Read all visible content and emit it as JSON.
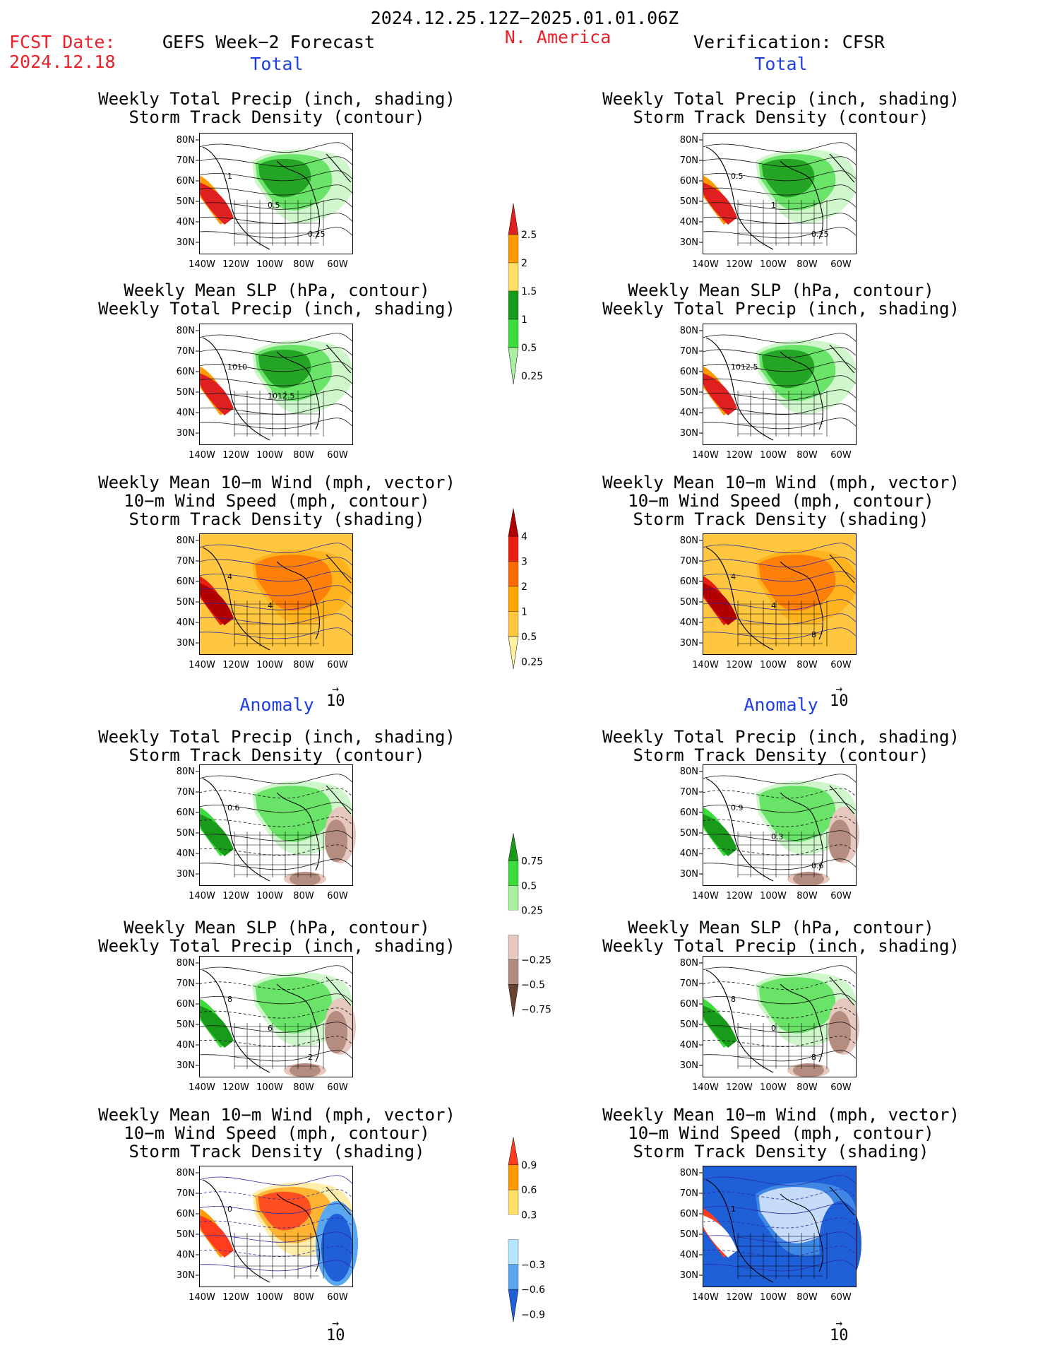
{
  "header": {
    "date_range": "2024.12.25.12Z−2025.01.01.06Z",
    "fcst_label": "FCST Date:",
    "fcst_date": "2024.12.18",
    "model": "GEFS Week−2 Forecast",
    "region": "N. America",
    "verification": "Verification: CFSR"
  },
  "sections": {
    "total": "Total",
    "anomaly": "Anomaly"
  },
  "panel_titles": {
    "precip_storm": [
      "Weekly Total Precip (inch, shading)",
      "Storm Track Density (contour)"
    ],
    "slp_precip": [
      "Weekly Mean SLP (hPa, contour)",
      "Weekly Total Precip (inch, shading)"
    ],
    "wind_storm": [
      "Weekly Mean 10−m Wind (mph, vector)",
      "10−m Wind Speed (mph, contour)",
      "Storm Track Density (shading)"
    ]
  },
  "axes": {
    "lat_labels": [
      "80N",
      "70N",
      "60N",
      "50N",
      "40N",
      "30N"
    ],
    "lon_labels": [
      "140W",
      "120W",
      "100W",
      "80W",
      "60W"
    ]
  },
  "vector_ref": "10",
  "colorbars": {
    "precip_total": {
      "labels": [
        "2.5",
        "2",
        "1.5",
        "1",
        "0.5",
        "0.25"
      ],
      "colors": [
        "#e02020",
        "#ff9a00",
        "#ffe066",
        "#1a9a1a",
        "#3ddc3d",
        "#a8f0a0"
      ]
    },
    "storm_total": {
      "labels": [
        "4",
        "3",
        "2",
        "1",
        "0.5",
        "0.25"
      ],
      "colors": [
        "#b00000",
        "#e82010",
        "#ff6a00",
        "#ffa500",
        "#ffc640",
        "#fff0a0"
      ]
    },
    "precip_anom": {
      "labels": [
        "0.75",
        "0.5",
        "0.25",
        "−0.25",
        "−0.5",
        "−0.75"
      ],
      "colors": [
        "#1a9a1a",
        "#3ddc3d",
        "#a8f0a0",
        "#ffffff",
        "#e6c8be",
        "#b48c80",
        "#6a4030"
      ]
    },
    "storm_anom": {
      "labels": [
        "0.9",
        "0.6",
        "0.3",
        "−0.3",
        "−0.6",
        "−0.9"
      ],
      "colors": [
        "#ff3c1e",
        "#ff9a00",
        "#ffe066",
        "#ffffff",
        "#b4e6ff",
        "#5aa8f0",
        "#1f5fd8"
      ]
    }
  },
  "panels": [
    {
      "id": "fc-total-precip",
      "column": "forecast",
      "pad": "green",
      "title": "precip_storm",
      "labels": [
        "1",
        "0.5",
        "0.25"
      ]
    },
    {
      "id": "fc-total-slp",
      "column": "forecast",
      "pad": "green",
      "title": "slp_precip",
      "labels": [
        "1010",
        "1012.5"
      ]
    },
    {
      "id": "fc-total-wind",
      "column": "forecast",
      "pad": "orange",
      "title": "wind_storm",
      "labels": [
        "4",
        "4"
      ]
    },
    {
      "id": "vf-total-precip",
      "column": "verification",
      "pad": "green",
      "title": "precip_storm",
      "labels": [
        "0.5",
        "1",
        "0.25"
      ]
    },
    {
      "id": "vf-total-slp",
      "column": "verification",
      "pad": "green",
      "title": "slp_precip",
      "labels": [
        "1012.5"
      ]
    },
    {
      "id": "vf-total-wind",
      "column": "verification",
      "pad": "orange",
      "title": "wind_storm",
      "labels": [
        "4",
        "4",
        "8"
      ]
    },
    {
      "id": "fc-anom-precip",
      "column": "forecast",
      "pad": "anom-green",
      "title": "precip_storm",
      "labels": [
        "0.6"
      ]
    },
    {
      "id": "fc-anom-slp",
      "column": "forecast",
      "pad": "anom-green",
      "title": "slp_precip",
      "labels": [
        "8",
        "6",
        "2"
      ]
    },
    {
      "id": "fc-anom-wind",
      "column": "forecast",
      "pad": "anom-storm",
      "title": "wind_storm",
      "labels": [
        "0"
      ]
    },
    {
      "id": "vf-anom-precip",
      "column": "verification",
      "pad": "anom-green",
      "title": "precip_storm",
      "labels": [
        "0.9",
        "0.3",
        "0.6"
      ]
    },
    {
      "id": "vf-anom-slp",
      "column": "verification",
      "pad": "anom-green",
      "title": "slp_precip",
      "labels": [
        "8",
        "0",
        "8"
      ]
    },
    {
      "id": "vf-anom-wind",
      "column": "verification",
      "pad": "anom-storm-blue",
      "title": "wind_storm",
      "labels": [
        "1"
      ]
    }
  ]
}
